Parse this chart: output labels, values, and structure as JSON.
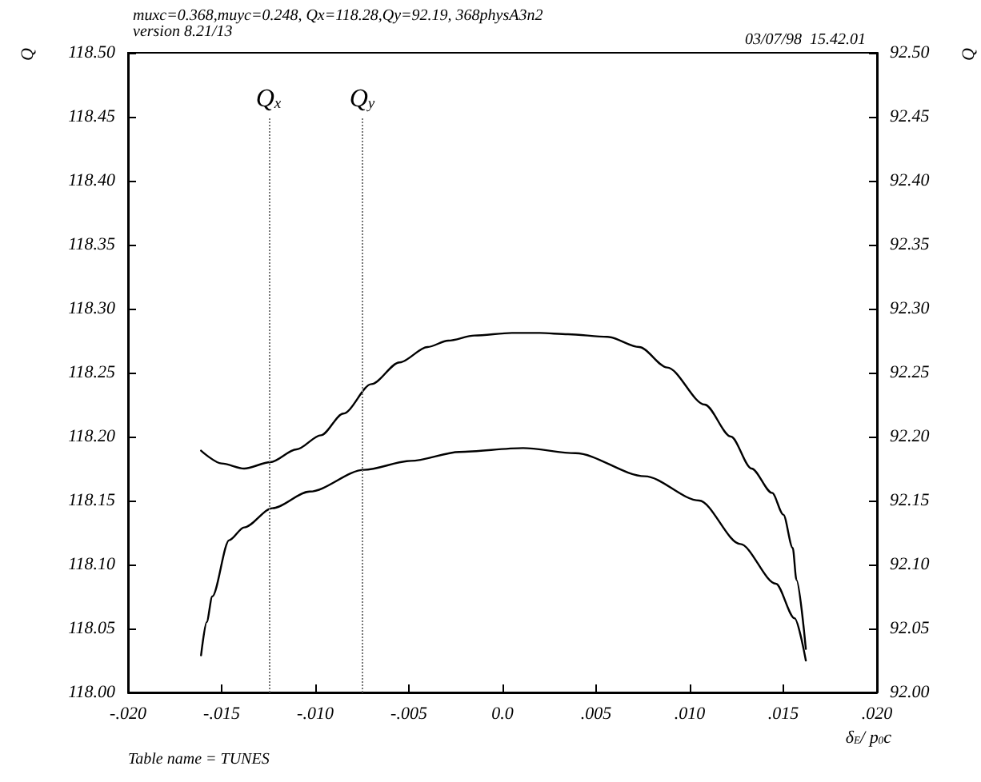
{
  "chart_data": {
    "type": "line",
    "title": "muxc=0.368,muyc=0.248, Qx=118.28,Qy=92.19, 368physA3n2",
    "subtitle": "version 8.21/13",
    "xlabel": "δ$_{E}$/ p$_{0}$c",
    "ylabel": "Q",
    "y2label": "Q",
    "annotations": [
      "03/07/98  15.42.01",
      "Table name = TUNES"
    ],
    "series": [
      {
        "color": "#000000",
        "x": [
          -0.0161,
          -0.015,
          -0.0138,
          -0.0124,
          -0.011,
          -0.0097,
          -0.0085,
          -0.007,
          -0.0055,
          -0.004,
          -0.0029,
          -0.0015,
          0.0005,
          0.002,
          0.0035,
          0.0056,
          0.0073,
          0.0088,
          0.0108,
          0.0122,
          0.0133,
          0.0144,
          0.015,
          0.0155,
          0.0157,
          0.0162
        ],
        "values": [
          118.189,
          118.179,
          118.175,
          118.18,
          118.19,
          118.201,
          118.218,
          118.241,
          118.258,
          118.27,
          118.275,
          118.279,
          118.281,
          118.281,
          118.28,
          118.278,
          118.27,
          118.254,
          118.225,
          118.2,
          118.175,
          118.156,
          118.139,
          118.113,
          118.088,
          118.034
        ]
      },
      {
        "color": "#000000",
        "axis": "y2",
        "x": [
          -0.0161,
          -0.0158,
          -0.0155,
          -0.0146,
          -0.0138,
          -0.0123,
          -0.0103,
          -0.0074,
          -0.0049,
          -0.0023,
          0.0011,
          0.0039,
          0.0076,
          0.0105,
          0.0127,
          0.0146,
          0.0156,
          0.0162
        ],
        "values": [
          92.029,
          92.055,
          92.075,
          92.119,
          92.129,
          92.144,
          92.157,
          92.174,
          92.181,
          92.188,
          92.191,
          92.187,
          92.169,
          92.15,
          92.116,
          92.085,
          92.058,
          92.025
        ]
      }
    ],
    "ref_lines": [
      {
        "axis": "x",
        "value": -0.0125,
        "label": "Q$_{x}$",
        "line_style": "dotted",
        "color": "#777777"
      },
      {
        "axis": "x",
        "value": -0.0075,
        "label": "Q$_{y}$",
        "line_style": "dotted",
        "color": "#777777"
      }
    ],
    "xlim": [
      -0.02,
      0.02
    ],
    "xticks": [
      {
        "value": -0.02,
        "label": "-.020"
      },
      {
        "value": -0.015,
        "label": "-.015"
      },
      {
        "value": -0.01,
        "label": "-.010"
      },
      {
        "value": -0.005,
        "label": "-.005"
      },
      {
        "value": 0,
        "label": "0.0"
      },
      {
        "value": 0.005,
        "label": ".005"
      },
      {
        "value": 0.01,
        "label": ".010"
      },
      {
        "value": 0.015,
        "label": ".015"
      },
      {
        "value": 0.02,
        "label": ".020"
      }
    ],
    "ylim": [
      118.0,
      118.5
    ],
    "yticks": [
      {
        "value": 118.0,
        "label": "118.00"
      },
      {
        "value": 118.05,
        "label": "118.05"
      },
      {
        "value": 118.1,
        "label": "118.10"
      },
      {
        "value": 118.15,
        "label": "118.15"
      },
      {
        "value": 118.2,
        "label": "118.20"
      },
      {
        "value": 118.25,
        "label": "118.25"
      },
      {
        "value": 118.3,
        "label": "118.30"
      },
      {
        "value": 118.35,
        "label": "118.35"
      },
      {
        "value": 118.4,
        "label": "118.40"
      },
      {
        "value": 118.45,
        "label": "118.45"
      },
      {
        "value": 118.5,
        "label": "118.50"
      }
    ],
    "y2lim": [
      92.0,
      92.5
    ],
    "y2ticks": [
      {
        "value": 92.0,
        "label": "92.00"
      },
      {
        "value": 92.05,
        "label": "92.05"
      },
      {
        "value": 92.1,
        "label": "92.10"
      },
      {
        "value": 92.15,
        "label": "92.15"
      },
      {
        "value": 92.2,
        "label": "92.20"
      },
      {
        "value": 92.25,
        "label": "92.25"
      },
      {
        "value": 92.3,
        "label": "92.30"
      },
      {
        "value": 92.35,
        "label": "92.35"
      },
      {
        "value": 92.4,
        "label": "92.40"
      },
      {
        "value": 92.45,
        "label": "92.45"
      },
      {
        "value": 92.5,
        "label": "92.50"
      }
    ],
    "grid": false,
    "marker": "none",
    "line_style": "solid"
  }
}
